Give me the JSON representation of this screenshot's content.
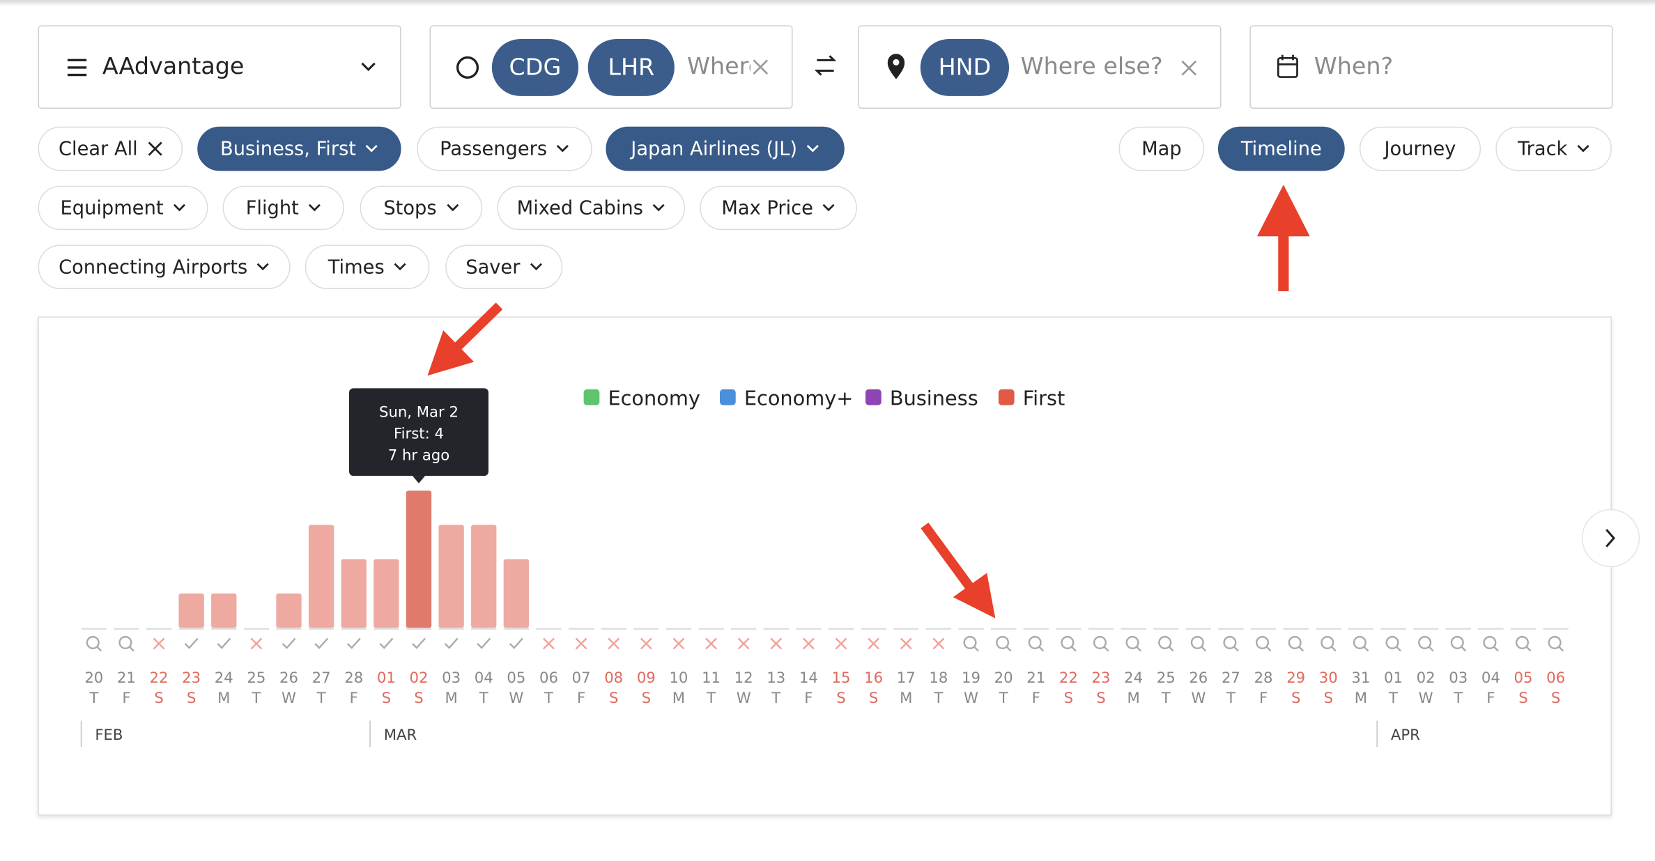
{
  "header": {
    "program": "AAdvantage",
    "origins": [
      "CDG",
      "LHR"
    ],
    "origin_placeholder": "Where",
    "destinations": [
      "HND"
    ],
    "destination_placeholder": "Where else?",
    "date_placeholder": "When?"
  },
  "filters": [
    [
      {
        "label": "Clear All",
        "icon": "clear",
        "active": false
      },
      {
        "label": "Business, First",
        "icon": "dropdown",
        "active": true
      },
      {
        "label": "Passengers",
        "icon": "dropdown",
        "active": false
      },
      {
        "label": "Japan Airlines (JL)",
        "icon": "dropdown",
        "active": true
      }
    ],
    [
      {
        "label": "Equipment",
        "icon": "dropdown",
        "active": false
      },
      {
        "label": "Flight",
        "icon": "dropdown",
        "active": false
      },
      {
        "label": "Stops",
        "icon": "dropdown",
        "active": false
      },
      {
        "label": "Mixed Cabins",
        "icon": "dropdown",
        "active": false
      },
      {
        "label": "Max Price",
        "icon": "dropdown",
        "active": false
      }
    ],
    [
      {
        "label": "Connecting Airports",
        "icon": "dropdown",
        "active": false
      },
      {
        "label": "Times",
        "icon": "dropdown",
        "active": false
      },
      {
        "label": "Saver",
        "icon": "dropdown",
        "active": false
      }
    ]
  ],
  "views": [
    {
      "label": "Map",
      "icon": "none",
      "active": false
    },
    {
      "label": "Timeline",
      "icon": "none",
      "active": true
    },
    {
      "label": "Journey",
      "icon": "none",
      "active": false
    },
    {
      "label": "Track",
      "icon": "dropdown",
      "active": false
    }
  ],
  "chart_data": {
    "type": "bar",
    "legend": [
      {
        "name": "Economy",
        "color": "#5fc46f"
      },
      {
        "name": "Economy+",
        "color": "#4a8fdc"
      },
      {
        "name": "Business",
        "color": "#8e44b5"
      },
      {
        "name": "First",
        "color": "#e05a47"
      }
    ],
    "categories": [
      "20",
      "21",
      "22",
      "23",
      "24",
      "25",
      "26",
      "27",
      "28",
      "01",
      "02",
      "03",
      "04",
      "05",
      "06",
      "07",
      "08",
      "09",
      "10",
      "11",
      "12",
      "13",
      "14",
      "15",
      "16",
      "17",
      "18",
      "19",
      "20",
      "21",
      "22",
      "23",
      "24",
      "25",
      "26",
      "27",
      "28",
      "29",
      "30",
      "31",
      "01",
      "02",
      "03",
      "04",
      "05",
      "06"
    ],
    "weekdays": [
      "T",
      "F",
      "S",
      "S",
      "M",
      "T",
      "W",
      "T",
      "F",
      "S",
      "S",
      "M",
      "T",
      "W",
      "T",
      "F",
      "S",
      "S",
      "M",
      "T",
      "W",
      "T",
      "F",
      "S",
      "S",
      "M",
      "T",
      "W",
      "T",
      "F",
      "S",
      "S",
      "M",
      "T",
      "W",
      "T",
      "F",
      "S",
      "S",
      "M",
      "T",
      "W",
      "T",
      "F",
      "S",
      "S"
    ],
    "months": [
      "FEB",
      "MAR",
      "APR"
    ],
    "status": [
      "search",
      "search",
      "unavailable",
      "check",
      "check",
      "unavailable",
      "check",
      "check",
      "check",
      "check",
      "check",
      "check",
      "check",
      "check",
      "unavailable",
      "unavailable",
      "unavailable",
      "unavailable",
      "unavailable",
      "unavailable",
      "unavailable",
      "unavailable",
      "unavailable",
      "unavailable",
      "unavailable",
      "unavailable",
      "unavailable",
      "search",
      "search",
      "search",
      "search",
      "search",
      "search",
      "search",
      "search",
      "search",
      "search",
      "search",
      "search",
      "search",
      "search",
      "search",
      "search",
      "search",
      "search",
      "search"
    ],
    "series": [
      {
        "name": "First",
        "color": "#eeaaa1",
        "highlight_color": "#e07a6c",
        "values": [
          null,
          null,
          null,
          1,
          1,
          null,
          1,
          3,
          2,
          2,
          4,
          3,
          3,
          2,
          null,
          null,
          null,
          null,
          null,
          null,
          null,
          null,
          null,
          null,
          null,
          null,
          null,
          null,
          null,
          null,
          null,
          null,
          null,
          null,
          null,
          null,
          null,
          null,
          null,
          null,
          null,
          null,
          null,
          null,
          null,
          null
        ]
      }
    ],
    "ylim": [
      0,
      4
    ],
    "tooltip": {
      "index": 10,
      "lines": [
        "Sun, Mar 2",
        "First: 4",
        "7 hr ago"
      ]
    }
  }
}
